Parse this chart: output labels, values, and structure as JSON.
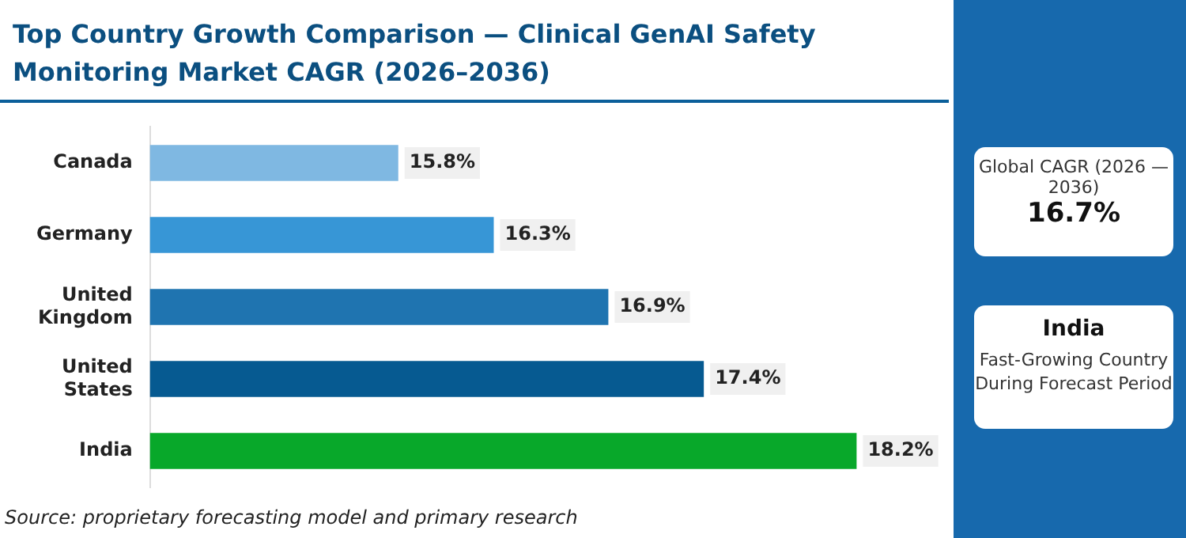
{
  "chart_data": {
    "type": "bar",
    "orientation": "horizontal",
    "title": "Top Country Growth Comparison — Clinical GenAI Safety Monitoring Market CAGR (2026–2036)",
    "categories": [
      "Canada",
      "Germany",
      "United Kingdom",
      "United States",
      "India"
    ],
    "values": [
      15.8,
      16.3,
      16.9,
      17.4,
      18.2
    ],
    "colors": [
      "#7fb8e2",
      "#3796d6",
      "#1f74b0",
      "#065a91",
      "#08a82a"
    ],
    "value_labels": [
      "15.8%",
      "16.3%",
      "16.9%",
      "17.4%",
      "18.2%"
    ],
    "xlim": [
      14.5,
      18.6
    ],
    "tick_labels": "y",
    "grid": false,
    "legend": false,
    "annotations": [
      "Global CAGR (2026 — 2036)",
      "16.7%",
      "India",
      "Fast-Growing Country During Forecast Period",
      "Source: proprietary forecasting model and primary research"
    ]
  }
}
